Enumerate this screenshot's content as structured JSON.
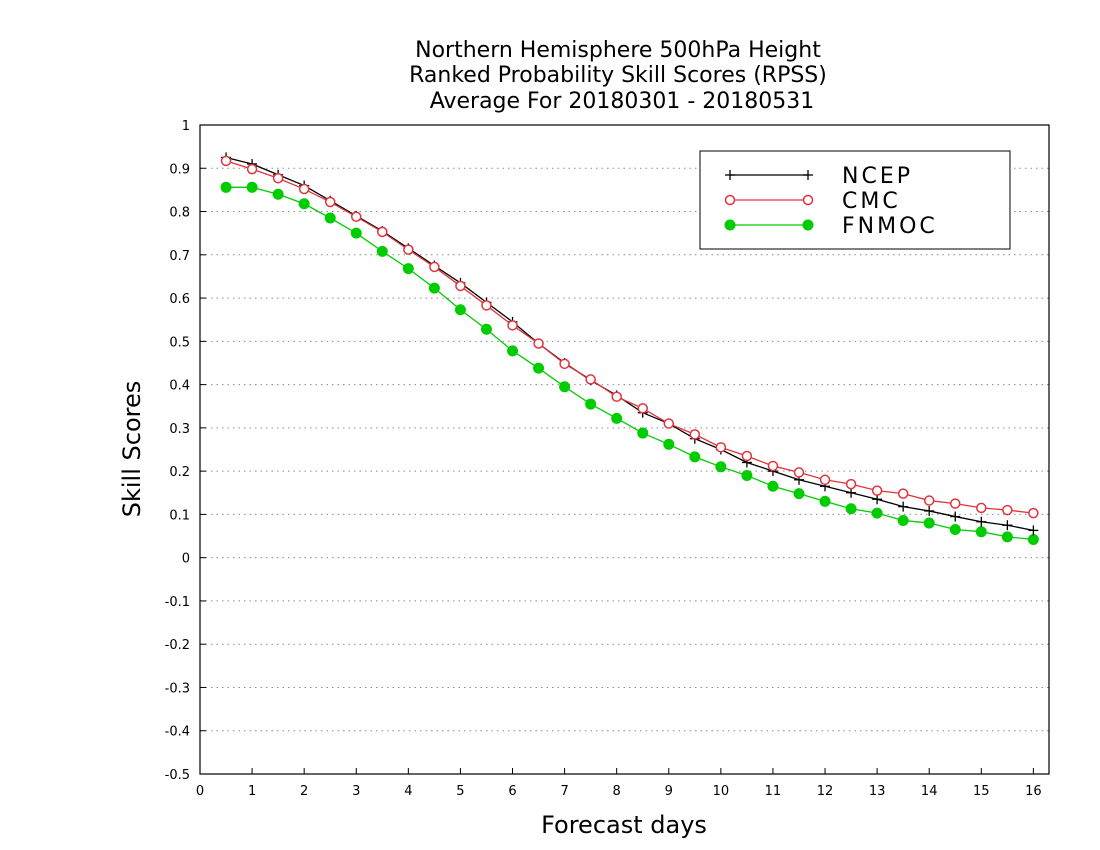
{
  "chart_data": {
    "type": "line",
    "title": [
      "Northern Hemisphere 500hPa Height",
      "Ranked Probability Skill Scores (RPSS)",
      "Average For 20180301 - 20180531"
    ],
    "xlabel": "Forecast days",
    "ylabel": "Skill Scores",
    "xlim": [
      0,
      16.3
    ],
    "ylim": [
      -0.5,
      1
    ],
    "xticks": [
      0,
      1,
      2,
      3,
      4,
      5,
      6,
      7,
      8,
      9,
      10,
      11,
      12,
      13,
      14,
      15,
      16
    ],
    "yticks": [
      -0.5,
      -0.4,
      -0.3,
      -0.2,
      -0.1,
      0,
      0.1,
      0.2,
      0.3,
      0.4,
      0.5,
      0.6,
      0.7,
      0.8,
      0.9,
      1
    ],
    "ytick_labels": [
      "-0.5",
      "-0.4",
      "-0.3",
      "-0.2",
      "-0.1",
      "0",
      "0.1",
      "0.2",
      "0.3",
      "0.4",
      "0.5",
      "0.6",
      "0.7",
      "0.8",
      "0.9",
      "1"
    ],
    "grid": true,
    "legend_position": "top-right",
    "x": [
      0.5,
      1,
      1.5,
      2,
      2.5,
      3,
      3.5,
      4,
      4.5,
      5,
      5.5,
      6,
      6.5,
      7,
      7.5,
      8,
      8.5,
      9,
      9.5,
      10,
      10.5,
      11,
      11.5,
      12,
      12.5,
      13,
      13.5,
      14,
      14.5,
      15,
      15.5,
      16
    ],
    "series": [
      {
        "name": "NCEP",
        "color": "#000000",
        "marker": "plus",
        "values": [
          0.925,
          0.91,
          0.885,
          0.86,
          0.825,
          0.79,
          0.755,
          0.715,
          0.675,
          0.635,
          0.59,
          0.545,
          0.495,
          0.45,
          0.41,
          0.375,
          0.335,
          0.31,
          0.275,
          0.25,
          0.22,
          0.2,
          0.18,
          0.165,
          0.15,
          0.135,
          0.118,
          0.108,
          0.095,
          0.083,
          0.075,
          0.063
        ]
      },
      {
        "name": "CMC",
        "color": "#e0343c",
        "marker": "open-circle",
        "values": [
          0.917,
          0.898,
          0.877,
          0.852,
          0.822,
          0.788,
          0.753,
          0.712,
          0.672,
          0.628,
          0.583,
          0.537,
          0.495,
          0.448,
          0.412,
          0.372,
          0.345,
          0.31,
          0.285,
          0.255,
          0.235,
          0.212,
          0.197,
          0.18,
          0.17,
          0.155,
          0.148,
          0.132,
          0.125,
          0.115,
          0.11,
          0.103
        ]
      },
      {
        "name": "FNMOC",
        "color": "#00cc00",
        "marker": "filled-circle",
        "values": [
          0.856,
          0.856,
          0.84,
          0.818,
          0.785,
          0.75,
          0.708,
          0.668,
          0.623,
          0.573,
          0.528,
          0.478,
          0.438,
          0.395,
          0.355,
          0.322,
          0.288,
          0.262,
          0.233,
          0.21,
          0.19,
          0.165,
          0.148,
          0.13,
          0.113,
          0.103,
          0.086,
          0.08,
          0.065,
          0.06,
          0.048,
          0.042
        ]
      }
    ]
  }
}
